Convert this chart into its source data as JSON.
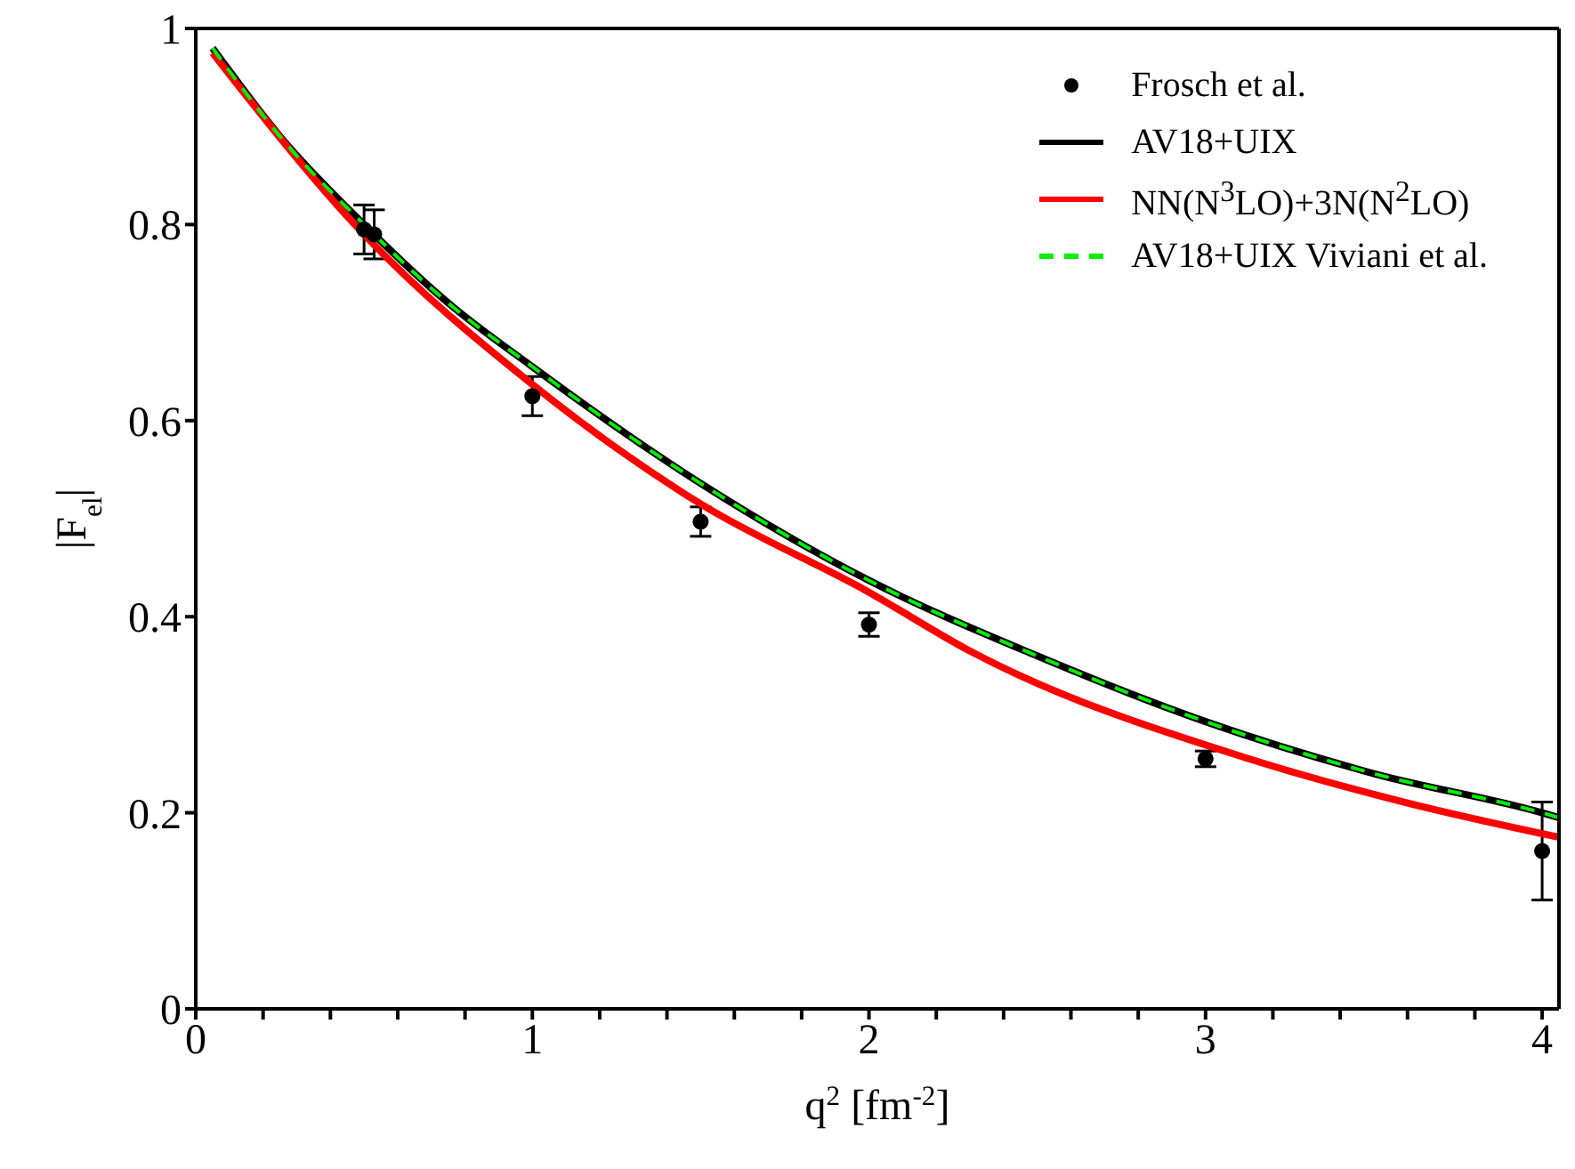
{
  "chart_data": {
    "type": "line",
    "xlabel": "q$^{2}$ [fm$^{-2}$]",
    "ylabel": "|F$_{el}$|",
    "xlim": [
      0,
      4.05
    ],
    "ylim": [
      0,
      1
    ],
    "xticks": [
      0,
      {
        "value": 0.2,
        "label": null
      },
      {
        "value": 0.4,
        "label": null
      },
      {
        "value": 0.6,
        "label": null
      },
      {
        "value": 0.8,
        "label": null
      },
      1,
      {
        "value": 1.2,
        "label": null
      },
      {
        "value": 1.4,
        "label": null
      },
      {
        "value": 1.6,
        "label": null
      },
      {
        "value": 1.8,
        "label": null
      },
      2,
      {
        "value": 2.2,
        "label": null
      },
      {
        "value": 2.4,
        "label": null
      },
      {
        "value": 2.6,
        "label": null
      },
      {
        "value": 2.8,
        "label": null
      },
      3,
      {
        "value": 3.2,
        "label": null
      },
      {
        "value": 3.4,
        "label": null
      },
      {
        "value": 3.6,
        "label": null
      },
      {
        "value": 3.8,
        "label": null
      },
      4
    ],
    "yticks": [
      0,
      0.2,
      0.4,
      0.6,
      0.8,
      1
    ],
    "grid": false,
    "legend": "top right",
    "series": [
      {
        "name": "Frosch  et al.",
        "type": "scatter",
        "marker": "circle",
        "color": "#000000",
        "x": [
          0.5,
          0.53,
          1,
          1.5,
          2,
          3,
          4
        ],
        "values": [
          0.795,
          0.79,
          0.625,
          0.497,
          0.392,
          0.255,
          0.161
        ],
        "errors": [
          0.025,
          0.025,
          0.02,
          0.015,
          0.012,
          0.008,
          0.05
        ]
      },
      {
        "name": "AV18+UIX",
        "type": "line",
        "marker": "none",
        "line_style": "solid",
        "color": "#000000",
        "x": [
          0.05,
          0.25,
          0.5,
          0.75,
          1,
          1.5,
          2,
          2.5,
          3,
          3.5,
          4,
          4.05
        ],
        "values": [
          0.98,
          0.89,
          0.8,
          0.72,
          0.655,
          0.536,
          0.437,
          0.36,
          0.293,
          0.24,
          0.2,
          0.195
        ]
      },
      {
        "name": "NN(N$^{3}$LO)+3N(N$^{2}$LO)",
        "type": "line",
        "marker": "none",
        "line_style": "solid",
        "color": "#ff0000",
        "x": [
          0.05,
          0.5,
          1,
          1.5,
          2,
          2.3,
          3.13,
          3.6,
          4.05
        ],
        "values": [
          0.975,
          0.79,
          0.637,
          0.515,
          0.425,
          0.365,
          0.255,
          0.21,
          0.175
        ]
      },
      {
        "name": "AV18+UIX Viviani et al.",
        "type": "line",
        "marker": "none",
        "line_style": "dashed",
        "color": "#00ee00",
        "x": [
          0.05,
          0.25,
          0.5,
          0.75,
          1,
          1.5,
          2,
          2.5,
          3,
          3.5,
          4,
          4.05
        ],
        "values": [
          0.98,
          0.89,
          0.8,
          0.72,
          0.655,
          0.536,
          0.437,
          0.36,
          0.293,
          0.24,
          0.2,
          0.195
        ]
      }
    ]
  }
}
